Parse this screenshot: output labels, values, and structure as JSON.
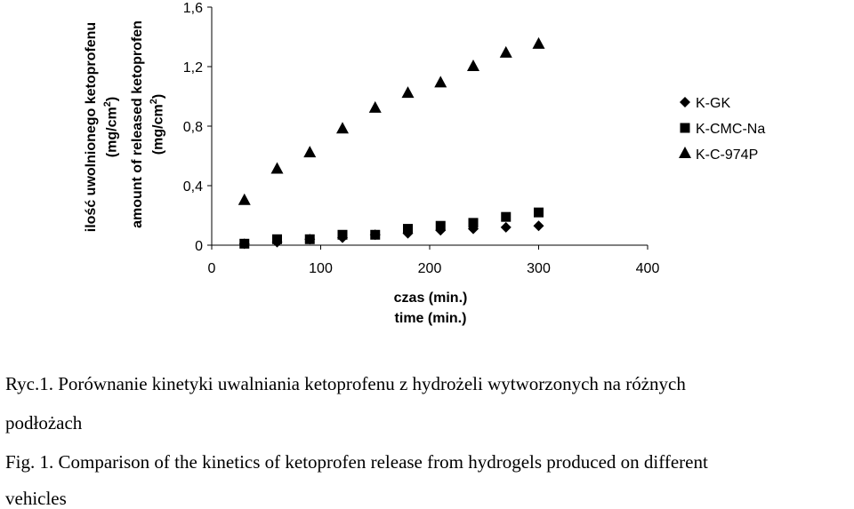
{
  "chart_data": {
    "type": "scatter",
    "xlabel_pl": "czas (min.)",
    "xlabel_en": "time (min.)",
    "ylabel_pl_1": "ilość uwolnionego ketoprofenu",
    "ylabel_pl_2": "(mg/cm",
    "ylabel_en_1": "amount of released ketoprofen",
    "ylabel_en_2": "(mg/cm",
    "ylabel_sup": "2",
    "ylabel_close": ")",
    "xlim": [
      0,
      400
    ],
    "ylim": [
      0,
      1.6
    ],
    "x_ticks": [
      "0",
      "100",
      "200",
      "300",
      "400"
    ],
    "y_ticks": [
      "0",
      "0,4",
      "0,8",
      "1,2",
      "1,6"
    ],
    "x_tick_values": [
      0,
      100,
      200,
      300,
      400
    ],
    "y_tick_values": [
      0,
      0.4,
      0.8,
      1.2,
      1.6
    ],
    "grid": false,
    "legend_position": "right",
    "series": [
      {
        "name": "K-GK",
        "marker": "diamond",
        "x": [
          30,
          60,
          90,
          120,
          150,
          180,
          210,
          240,
          270,
          300
        ],
        "y": [
          0.01,
          0.02,
          0.04,
          0.05,
          0.07,
          0.08,
          0.1,
          0.11,
          0.12,
          0.13
        ]
      },
      {
        "name": "K-CMC-Na",
        "marker": "square",
        "x": [
          30,
          60,
          90,
          120,
          150,
          180,
          210,
          240,
          270,
          300
        ],
        "y": [
          0.01,
          0.04,
          0.04,
          0.07,
          0.07,
          0.11,
          0.13,
          0.15,
          0.19,
          0.22
        ]
      },
      {
        "name": "K-C-974P",
        "marker": "triangle",
        "x": [
          30,
          60,
          90,
          120,
          150,
          180,
          210,
          240,
          270,
          300
        ],
        "y": [
          0.3,
          0.51,
          0.62,
          0.78,
          0.92,
          1.02,
          1.09,
          1.2,
          1.29,
          1.35
        ]
      }
    ]
  },
  "captions": {
    "pl_line1": "Ryc.1. Porównanie kinetyki uwalniania ketoprofenu z hydrożeli wytworzonych na różnych",
    "pl_line2": "podłożach",
    "en_line1": "Fig. 1. Comparison of the kinetics of ketoprofen release from hydrogels produced on different",
    "en_line2": "vehicles"
  }
}
